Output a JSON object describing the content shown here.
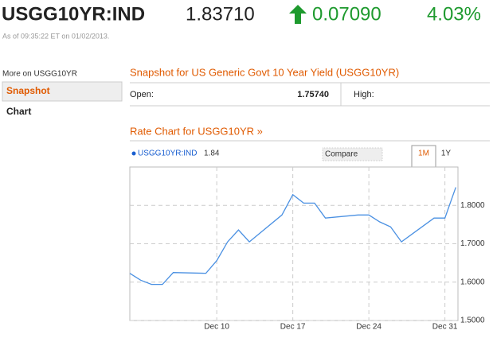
{
  "header": {
    "ticker": "USGG10YR:IND",
    "price": "1.83710",
    "change": "0.07090",
    "change_pct": "4.03%",
    "timestamp": "As of 09:35:22 ET on 01/02/2013."
  },
  "sidebar": {
    "title": "More on USGG10YR",
    "items": [
      "Snapshot",
      "Chart"
    ]
  },
  "snapshot": {
    "title": "Snapshot for US Generic Govt 10 Year Yield (USGG10YR)",
    "open_label": "Open:",
    "open_value": "1.75740",
    "high_label": "High:"
  },
  "rate_chart": {
    "title": "Rate Chart for USGG10YR »",
    "compare": "Compare",
    "tabs": [
      "1M",
      "1Y"
    ]
  },
  "chart_data": {
    "type": "line",
    "legend_value": 1.84,
    "series": [
      {
        "name": "USGG10YR:IND",
        "color": "#4a90e2",
        "x": [
          2,
          3,
          4,
          5,
          6,
          9,
          10,
          11,
          12,
          13,
          16,
          17,
          18,
          19,
          20,
          23,
          24,
          25,
          26,
          27,
          30,
          31,
          32
        ],
        "values": [
          1.623,
          1.605,
          1.594,
          1.594,
          1.625,
          1.623,
          1.656,
          1.705,
          1.736,
          1.705,
          1.775,
          1.828,
          1.806,
          1.806,
          1.767,
          1.775,
          1.775,
          1.757,
          1.744,
          1.705,
          1.767,
          1.767,
          1.847
        ]
      }
    ],
    "xlim": [
      2,
      32.2
    ],
    "ylim": [
      1.5,
      1.9
    ],
    "xticks": [
      {
        "value": 10,
        "label": "Dec 10"
      },
      {
        "value": 17,
        "label": "Dec 17"
      },
      {
        "value": 24,
        "label": "Dec 24"
      },
      {
        "value": 31,
        "label": "Dec 31"
      }
    ],
    "yticks": [
      {
        "value": 1.5,
        "label": "1.5000"
      },
      {
        "value": 1.6,
        "label": "1.6000"
      },
      {
        "value": 1.7,
        "label": "1.7000"
      },
      {
        "value": 1.8,
        "label": "1.8000"
      }
    ],
    "grid": true
  }
}
